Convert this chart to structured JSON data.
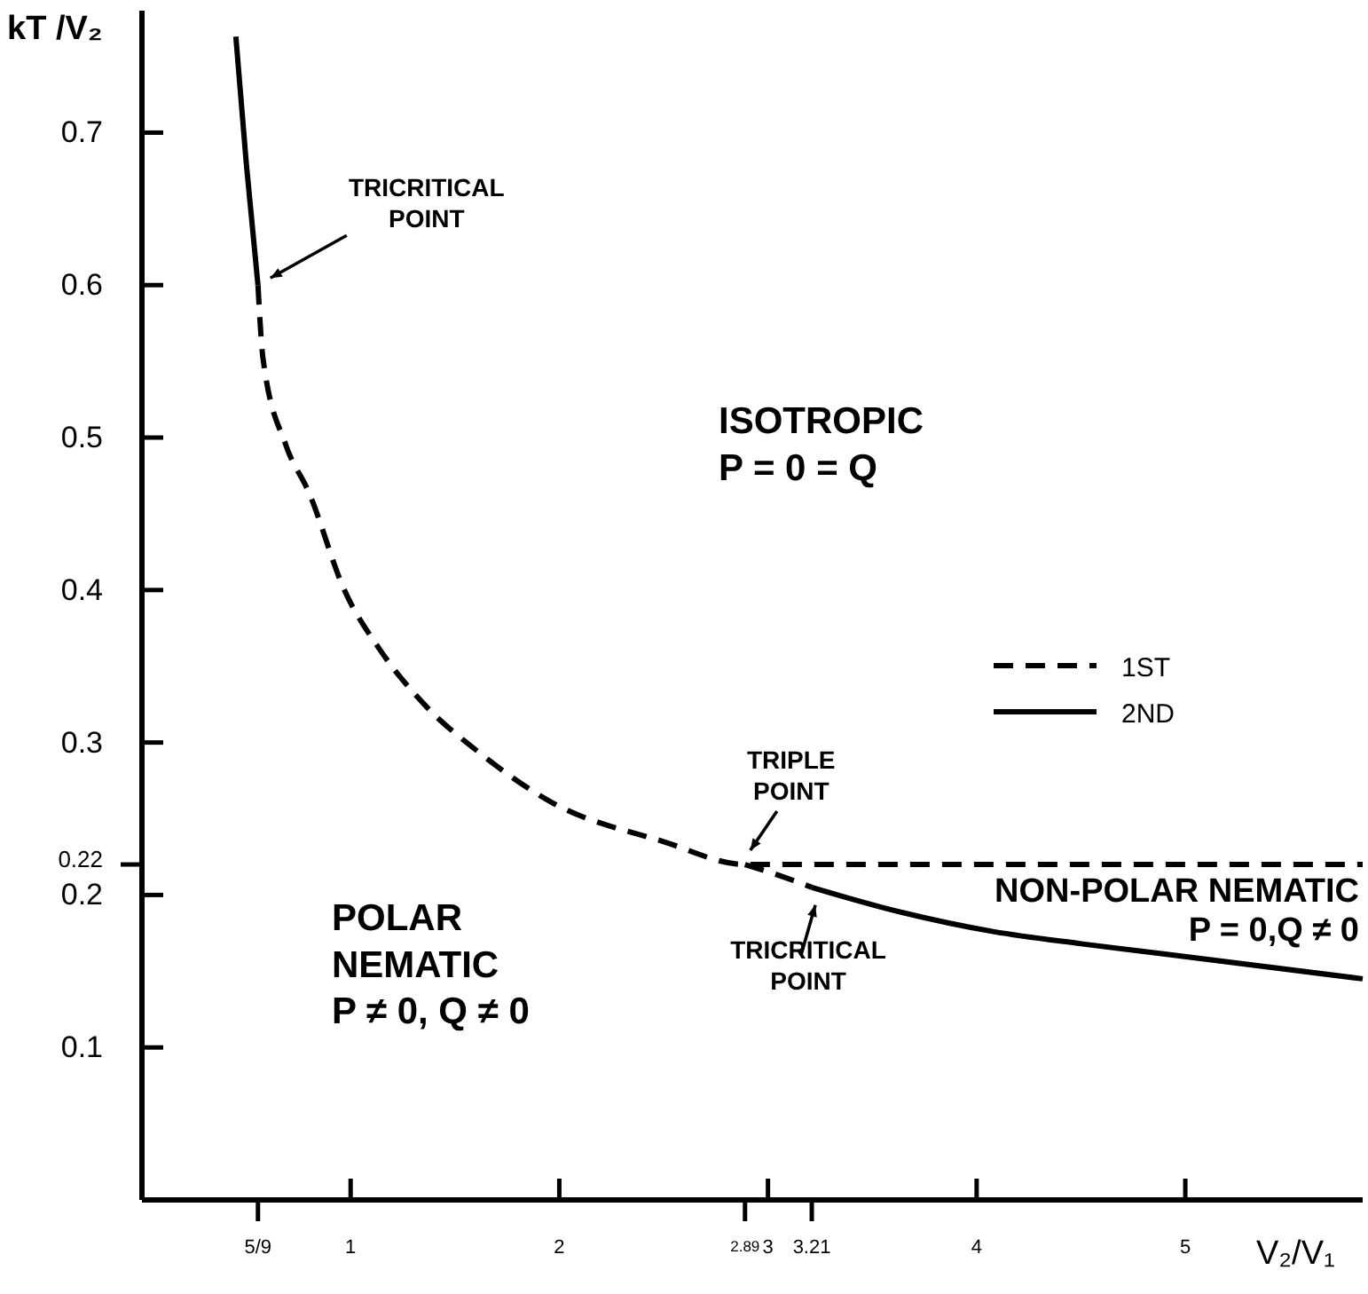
{
  "chart_data": {
    "type": "line",
    "xlabel": "V₂/V₁",
    "ylabel": "kT /V₂",
    "xlim": [
      0,
      5.85
    ],
    "ylim": [
      0,
      0.78
    ],
    "xticks": [
      {
        "value": 0.556,
        "label": "5/9"
      },
      1,
      2,
      {
        "value": 2.89,
        "label": "2.89"
      },
      3,
      {
        "value": 3.21,
        "label": "3.21"
      },
      4,
      5
    ],
    "yticks": [
      0.1,
      0.2,
      {
        "value": 0.22,
        "label": "0.22"
      },
      0.3,
      0.4,
      0.5,
      0.6,
      0.7
    ],
    "series": [
      {
        "name": "1ST",
        "color": "#000000",
        "line_style": "dashed",
        "x": [
          0.556,
          0.58,
          0.69,
          0.8,
          0.97,
          1.14,
          1.36,
          1.62,
          1.96,
          2.5,
          2.89,
          3.5,
          4.5,
          5.85,
          null,
          2.89,
          3.05,
          3.21
        ],
        "values": [
          0.6,
          0.552,
          0.495,
          0.464,
          0.4,
          0.361,
          0.324,
          0.293,
          0.261,
          0.235,
          0.22,
          0.22,
          0.22,
          0.22,
          null,
          0.22,
          0.213,
          0.205
        ]
      },
      {
        "name": "2ND",
        "color": "#000000",
        "line_style": "solid",
        "x": [
          0.45,
          0.5,
          0.556,
          null,
          3.21,
          3.6,
          4.08,
          4.5,
          4.92,
          5.85
        ],
        "values": [
          0.763,
          0.68,
          0.6,
          null,
          0.205,
          0.19,
          0.176,
          0.168,
          0.161,
          0.145
        ]
      }
    ],
    "annotations": [
      {
        "text": "TRICRITICAL\nPOINT",
        "x": 0.556,
        "y": 0.6
      },
      "ISOTROPIC\nP = 0 = Q",
      {
        "text": "TRIPLE\nPOINT",
        "x": 2.89,
        "y": 0.22
      },
      {
        "text": "TRICRITICAL\nPOINT",
        "x": 3.21,
        "y": 0.205
      },
      "NON-POLAR NEMATIC\nP = 0,Q ≠ 0",
      "POLAR\nNEMATIC\nP ≠ 0, Q ≠ 0"
    ],
    "legend": "right",
    "grid": false,
    "marker": "none"
  }
}
